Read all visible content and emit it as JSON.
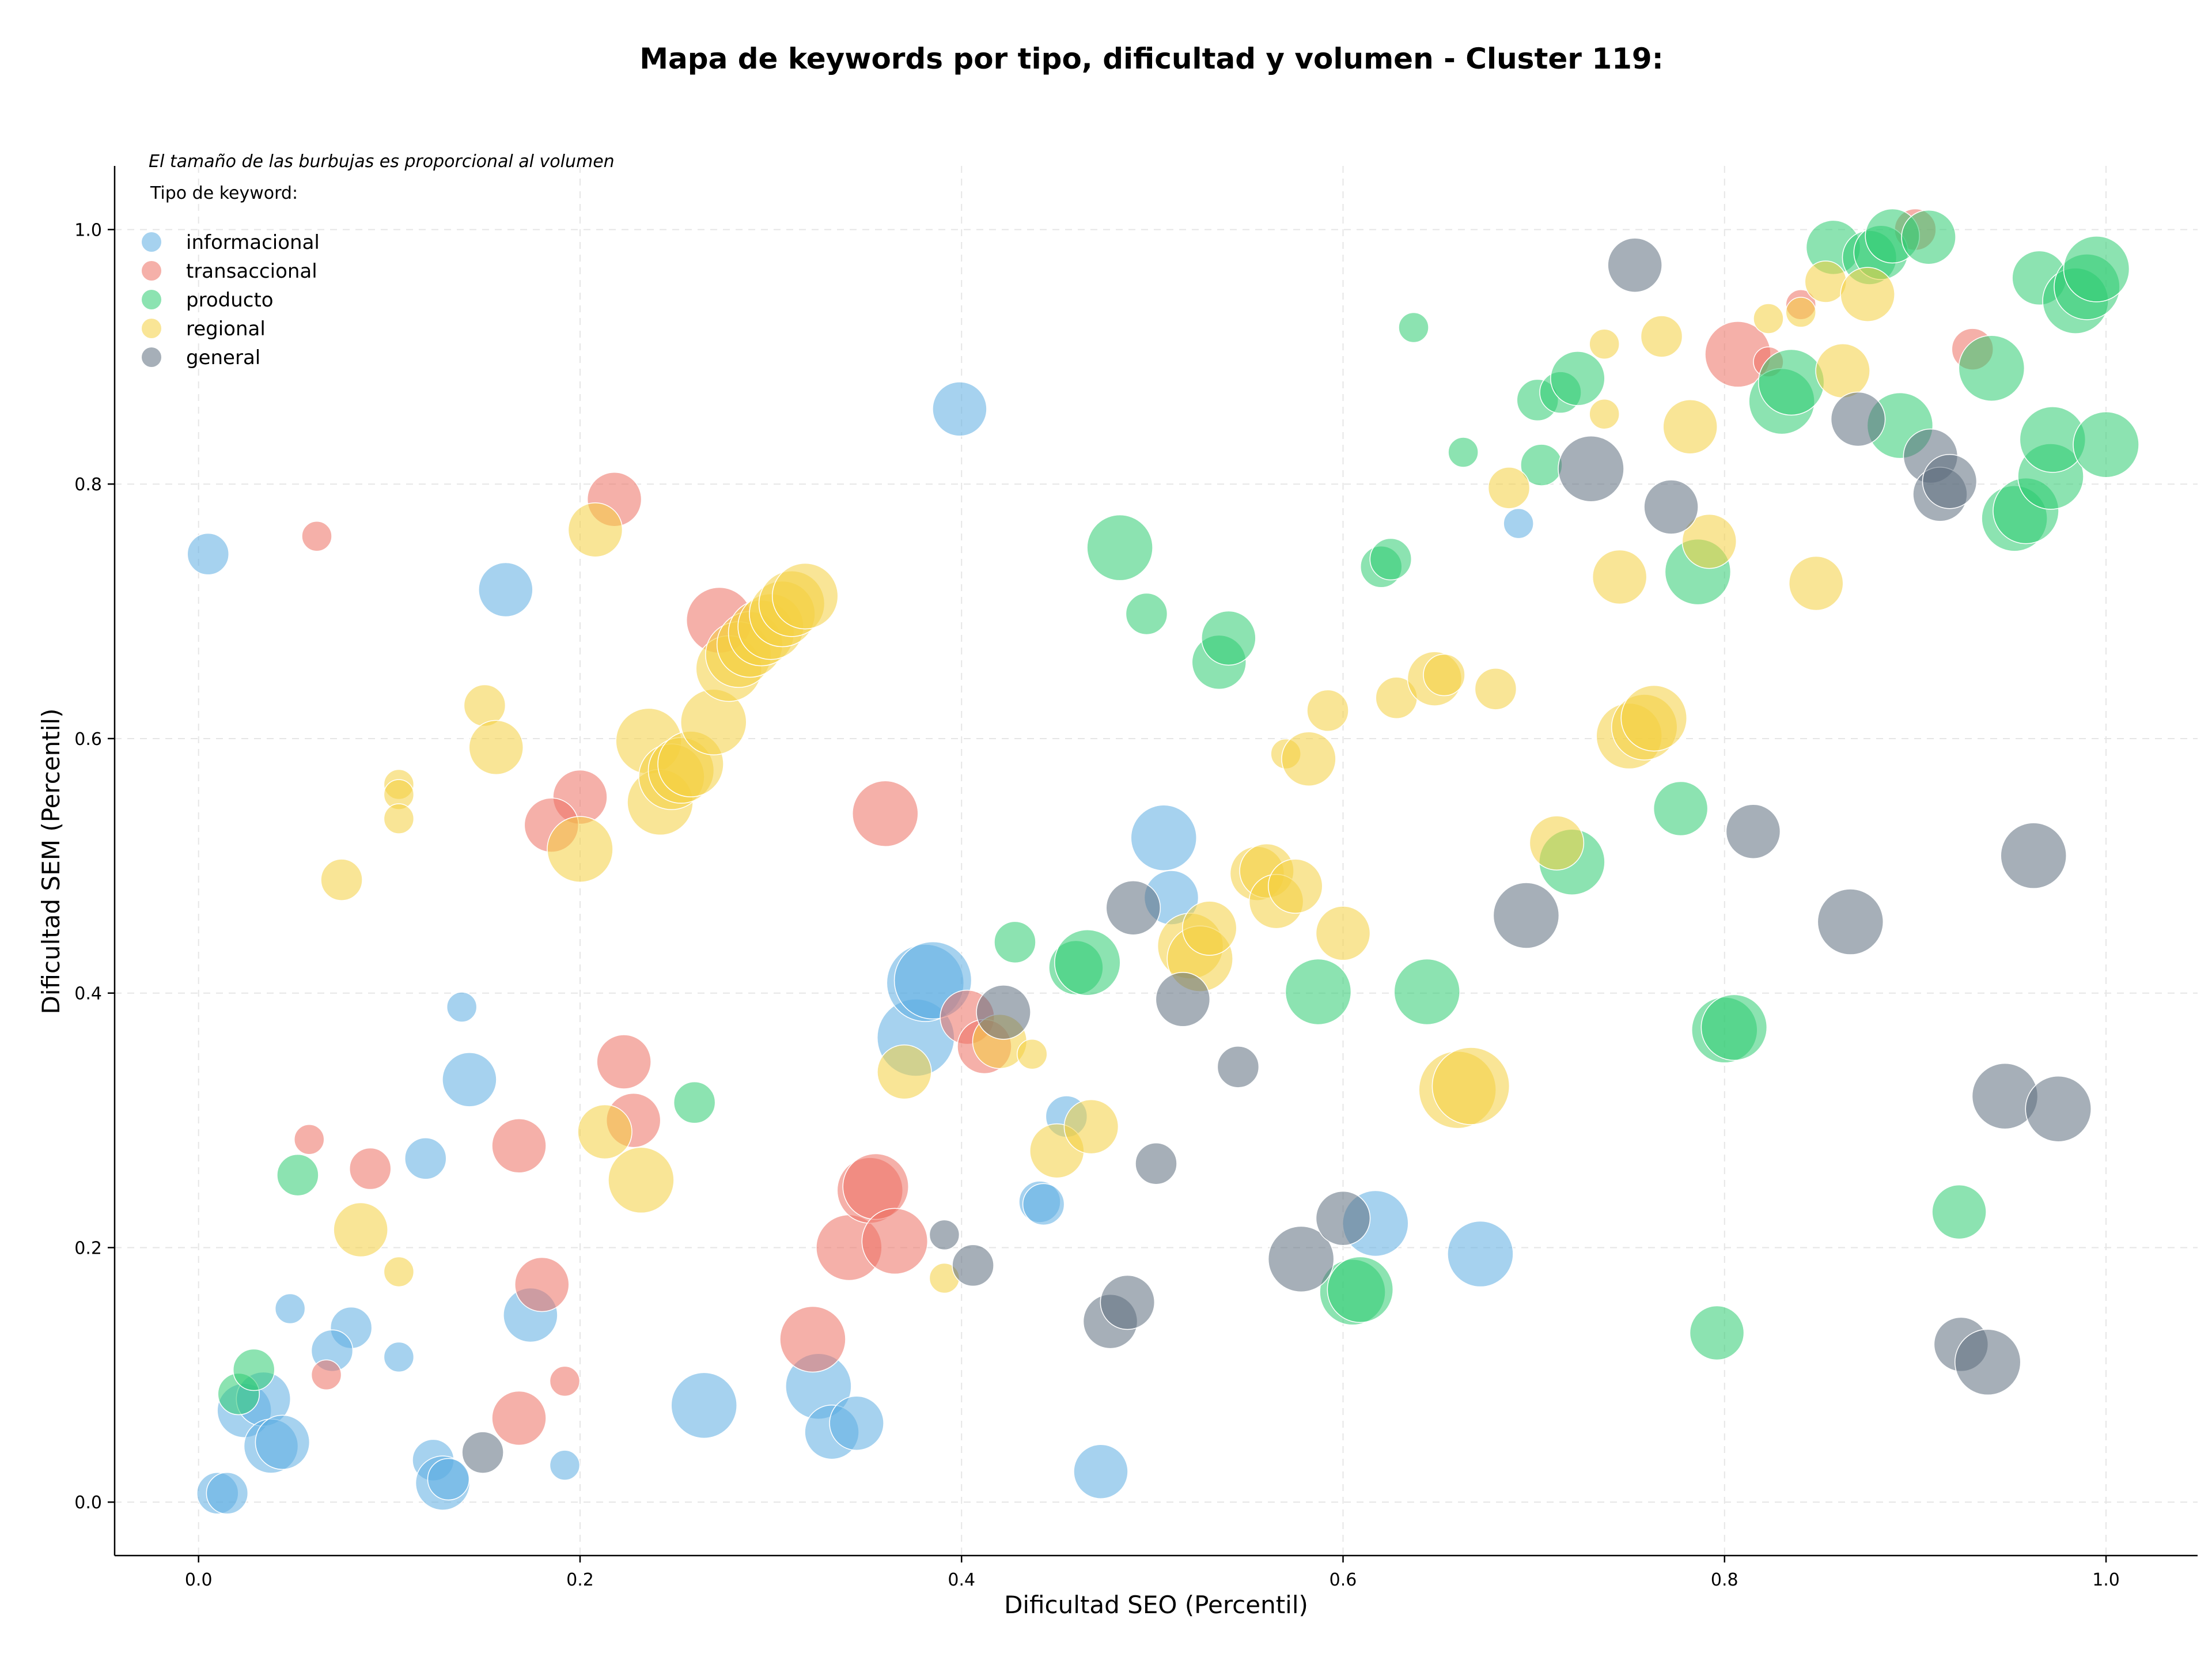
{
  "chart_data": {
    "type": "scatter",
    "title": "Mapa de keywords por tipo, dificultad y volumen - Cluster 119:",
    "xlabel": "Dificultad SEO (Percentil)",
    "ylabel": "Dificultad SEM (Percentil)",
    "xlim": [
      -0.044,
      1.048
    ],
    "ylim": [
      -0.042,
      1.05
    ],
    "xticks": [
      "0.0",
      "0.2",
      "0.4",
      "0.6",
      "0.8",
      "1.0"
    ],
    "yticks": [
      "0.0",
      "0.2",
      "0.4",
      "0.6",
      "0.8",
      "1.0"
    ],
    "grid": true,
    "note": "El tamaño de las burbujas es proporcional al volumen",
    "legend_title": "Tipo de keyword:",
    "legend_position": "top-left",
    "series": [
      {
        "name": "informacional",
        "color": "#5DADE2",
        "points": [
          [
            0.005,
            0.745,
            2
          ],
          [
            0.161,
            0.717,
            3
          ],
          [
            0.399,
            0.859,
            3
          ],
          [
            0.138,
            0.389,
            1
          ],
          [
            0.142,
            0.332,
            3
          ],
          [
            0.119,
            0.27,
            2
          ],
          [
            0.048,
            0.152,
            1
          ],
          [
            0.08,
            0.137,
            2
          ],
          [
            0.07,
            0.119,
            2
          ],
          [
            0.105,
            0.114,
            1
          ],
          [
            0.024,
            0.072,
            3
          ],
          [
            0.034,
            0.081,
            3
          ],
          [
            0.038,
            0.044,
            3
          ],
          [
            0.044,
            0.047,
            3
          ],
          [
            0.01,
            0.007,
            2
          ],
          [
            0.015,
            0.007,
            2
          ],
          [
            0.123,
            0.033,
            2
          ],
          [
            0.128,
            0.015,
            3
          ],
          [
            0.131,
            0.018,
            2
          ],
          [
            0.174,
            0.147,
            3
          ],
          [
            0.192,
            0.029,
            1
          ],
          [
            0.265,
            0.076,
            4
          ],
          [
            0.325,
            0.091,
            4
          ],
          [
            0.332,
            0.055,
            3
          ],
          [
            0.345,
            0.062,
            3
          ],
          [
            0.376,
            0.365,
            5
          ],
          [
            0.381,
            0.408,
            5
          ],
          [
            0.385,
            0.41,
            5
          ],
          [
            0.455,
            0.303,
            2
          ],
          [
            0.441,
            0.236,
            2
          ],
          [
            0.443,
            0.234,
            2
          ],
          [
            0.473,
            0.024,
            3
          ],
          [
            0.506,
            0.522,
            4
          ],
          [
            0.51,
            0.475,
            3
          ],
          [
            0.617,
            0.219,
            4
          ],
          [
            0.672,
            0.195,
            4
          ],
          [
            0.692,
            0.769,
            1
          ]
        ]
      },
      {
        "name": "transaccional",
        "color": "#EC7063",
        "points": [
          [
            0.062,
            0.759,
            1
          ],
          [
            0.218,
            0.788,
            3
          ],
          [
            0.273,
            0.693,
            4
          ],
          [
            0.2,
            0.554,
            3
          ],
          [
            0.185,
            0.532,
            3
          ],
          [
            0.223,
            0.346,
            3
          ],
          [
            0.228,
            0.3,
            3
          ],
          [
            0.168,
            0.28,
            3
          ],
          [
            0.058,
            0.285,
            1
          ],
          [
            0.09,
            0.262,
            2
          ],
          [
            0.18,
            0.171,
            3
          ],
          [
            0.067,
            0.1,
            1
          ],
          [
            0.168,
            0.066,
            3
          ],
          [
            0.192,
            0.095,
            1
          ],
          [
            0.322,
            0.128,
            4
          ],
          [
            0.341,
            0.2,
            4
          ],
          [
            0.352,
            0.245,
            4
          ],
          [
            0.355,
            0.248,
            4
          ],
          [
            0.365,
            0.205,
            4
          ],
          [
            0.36,
            0.541,
            4
          ],
          [
            0.403,
            0.381,
            3
          ],
          [
            0.412,
            0.358,
            3
          ],
          [
            0.807,
            0.902,
            4
          ],
          [
            0.823,
            0.896,
            1
          ],
          [
            0.84,
            0.941,
            1
          ],
          [
            0.9,
            1.0,
            2
          ],
          [
            0.93,
            0.906,
            2
          ]
        ]
      },
      {
        "name": "producto",
        "color": "#2ECC71",
        "points": [
          [
            0.052,
            0.257,
            2
          ],
          [
            0.021,
            0.085,
            2
          ],
          [
            0.029,
            0.104,
            2
          ],
          [
            0.26,
            0.314,
            2
          ],
          [
            0.428,
            0.44,
            2
          ],
          [
            0.46,
            0.42,
            3
          ],
          [
            0.466,
            0.424,
            4
          ],
          [
            0.483,
            0.75,
            4
          ],
          [
            0.497,
            0.698,
            2
          ],
          [
            0.535,
            0.66,
            3
          ],
          [
            0.54,
            0.679,
            3
          ],
          [
            0.587,
            0.401,
            4
          ],
          [
            0.605,
            0.165,
            4
          ],
          [
            0.609,
            0.167,
            4
          ],
          [
            0.62,
            0.735,
            2
          ],
          [
            0.625,
            0.741,
            2
          ],
          [
            0.637,
            0.923,
            1
          ],
          [
            0.644,
            0.401,
            4
          ],
          [
            0.663,
            0.825,
            1
          ],
          [
            0.702,
            0.866,
            2
          ],
          [
            0.704,
            0.815,
            2
          ],
          [
            0.714,
            0.872,
            2
          ],
          [
            0.723,
            0.883,
            3
          ],
          [
            0.72,
            0.503,
            4
          ],
          [
            0.777,
            0.545,
            3
          ],
          [
            0.786,
            0.731,
            4
          ],
          [
            0.796,
            0.133,
            3
          ],
          [
            0.8,
            0.371,
            4
          ],
          [
            0.805,
            0.373,
            4
          ],
          [
            0.83,
            0.865,
            4
          ],
          [
            0.835,
            0.88,
            4
          ],
          [
            0.857,
            0.986,
            3
          ],
          [
            0.876,
            0.978,
            3
          ],
          [
            0.882,
            0.982,
            3
          ],
          [
            0.888,
            0.995,
            3
          ],
          [
            0.892,
            0.846,
            4
          ],
          [
            0.907,
            0.994,
            3
          ],
          [
            0.923,
            0.228,
            3
          ],
          [
            0.94,
            0.891,
            4
          ],
          [
            0.952,
            0.773,
            4
          ],
          [
            0.958,
            0.779,
            4
          ],
          [
            0.965,
            0.962,
            3
          ],
          [
            0.971,
            0.806,
            4
          ],
          [
            0.972,
            0.835,
            4
          ],
          [
            0.984,
            0.944,
            4
          ],
          [
            0.99,
            0.955,
            4
          ],
          [
            0.995,
            0.969,
            4
          ],
          [
            1.0,
            0.831,
            4
          ]
        ]
      },
      {
        "name": "regional",
        "color": "#F4D03F",
        "points": [
          [
            0.075,
            0.489,
            2
          ],
          [
            0.105,
            0.564,
            1
          ],
          [
            0.105,
            0.556,
            1
          ],
          [
            0.105,
            0.537,
            1
          ],
          [
            0.085,
            0.214,
            3
          ],
          [
            0.105,
            0.181,
            1
          ],
          [
            0.15,
            0.626,
            2
          ],
          [
            0.156,
            0.593,
            3
          ],
          [
            0.2,
            0.513,
            4
          ],
          [
            0.208,
            0.764,
            3
          ],
          [
            0.213,
            0.291,
            3
          ],
          [
            0.232,
            0.253,
            4
          ],
          [
            0.236,
            0.598,
            4
          ],
          [
            0.242,
            0.55,
            4
          ],
          [
            0.248,
            0.57,
            4
          ],
          [
            0.253,
            0.575,
            4
          ],
          [
            0.258,
            0.58,
            4
          ],
          [
            0.27,
            0.613,
            4
          ],
          [
            0.278,
            0.655,
            4
          ],
          [
            0.283,
            0.666,
            4
          ],
          [
            0.289,
            0.674,
            4
          ],
          [
            0.295,
            0.683,
            4
          ],
          [
            0.3,
            0.688,
            4
          ],
          [
            0.306,
            0.698,
            4
          ],
          [
            0.311,
            0.706,
            4
          ],
          [
            0.318,
            0.712,
            4
          ],
          [
            0.37,
            0.338,
            3
          ],
          [
            0.391,
            0.176,
            1
          ],
          [
            0.42,
            0.362,
            3
          ],
          [
            0.437,
            0.352,
            1
          ],
          [
            0.45,
            0.276,
            3
          ],
          [
            0.468,
            0.295,
            3
          ],
          [
            0.52,
            0.437,
            4
          ],
          [
            0.525,
            0.427,
            4
          ],
          [
            0.53,
            0.451,
            3
          ],
          [
            0.555,
            0.494,
            3
          ],
          [
            0.56,
            0.496,
            3
          ],
          [
            0.565,
            0.472,
            3
          ],
          [
            0.575,
            0.484,
            3
          ],
          [
            0.57,
            0.588,
            1
          ],
          [
            0.582,
            0.584,
            3
          ],
          [
            0.592,
            0.622,
            2
          ],
          [
            0.6,
            0.447,
            3
          ],
          [
            0.628,
            0.632,
            2
          ],
          [
            0.648,
            0.647,
            3
          ],
          [
            0.653,
            0.65,
            2
          ],
          [
            0.66,
            0.324,
            5
          ],
          [
            0.667,
            0.327,
            5
          ],
          [
            0.68,
            0.639,
            2
          ],
          [
            0.687,
            0.797,
            2
          ],
          [
            0.712,
            0.518,
            3
          ],
          [
            0.737,
            0.91,
            1
          ],
          [
            0.737,
            0.855,
            1
          ],
          [
            0.745,
            0.727,
            3
          ],
          [
            0.75,
            0.602,
            4
          ],
          [
            0.758,
            0.609,
            4
          ],
          [
            0.763,
            0.616,
            4
          ],
          [
            0.767,
            0.916,
            2
          ],
          [
            0.782,
            0.845,
            3
          ],
          [
            0.792,
            0.755,
            3
          ],
          [
            0.823,
            0.93,
            1
          ],
          [
            0.84,
            0.935,
            1
          ],
          [
            0.848,
            0.722,
            3
          ],
          [
            0.853,
            0.959,
            2
          ],
          [
            0.862,
            0.889,
            3
          ],
          [
            0.875,
            0.949,
            3
          ]
        ]
      },
      {
        "name": "general",
        "color": "#5D6D7E",
        "points": [
          [
            0.149,
            0.039,
            2
          ],
          [
            0.391,
            0.21,
            1
          ],
          [
            0.406,
            0.186,
            2
          ],
          [
            0.422,
            0.385,
            3
          ],
          [
            0.478,
            0.142,
            3
          ],
          [
            0.487,
            0.157,
            3
          ],
          [
            0.49,
            0.467,
            3
          ],
          [
            0.502,
            0.266,
            2
          ],
          [
            0.516,
            0.395,
            3
          ],
          [
            0.545,
            0.342,
            2
          ],
          [
            0.578,
            0.191,
            4
          ],
          [
            0.6,
            0.223,
            3
          ],
          [
            0.696,
            0.461,
            4
          ],
          [
            0.73,
            0.812,
            4
          ],
          [
            0.753,
            0.972,
            3
          ],
          [
            0.772,
            0.782,
            3
          ],
          [
            0.815,
            0.527,
            3
          ],
          [
            0.866,
            0.456,
            4
          ],
          [
            0.87,
            0.851,
            3
          ],
          [
            0.908,
            0.822,
            3
          ],
          [
            0.913,
            0.792,
            3
          ],
          [
            0.918,
            0.802,
            3
          ],
          [
            0.924,
            0.124,
            3
          ],
          [
            0.938,
            0.11,
            4
          ],
          [
            0.947,
            0.319,
            4
          ],
          [
            0.962,
            0.508,
            4
          ],
          [
            0.975,
            0.309,
            4
          ]
        ]
      }
    ]
  }
}
